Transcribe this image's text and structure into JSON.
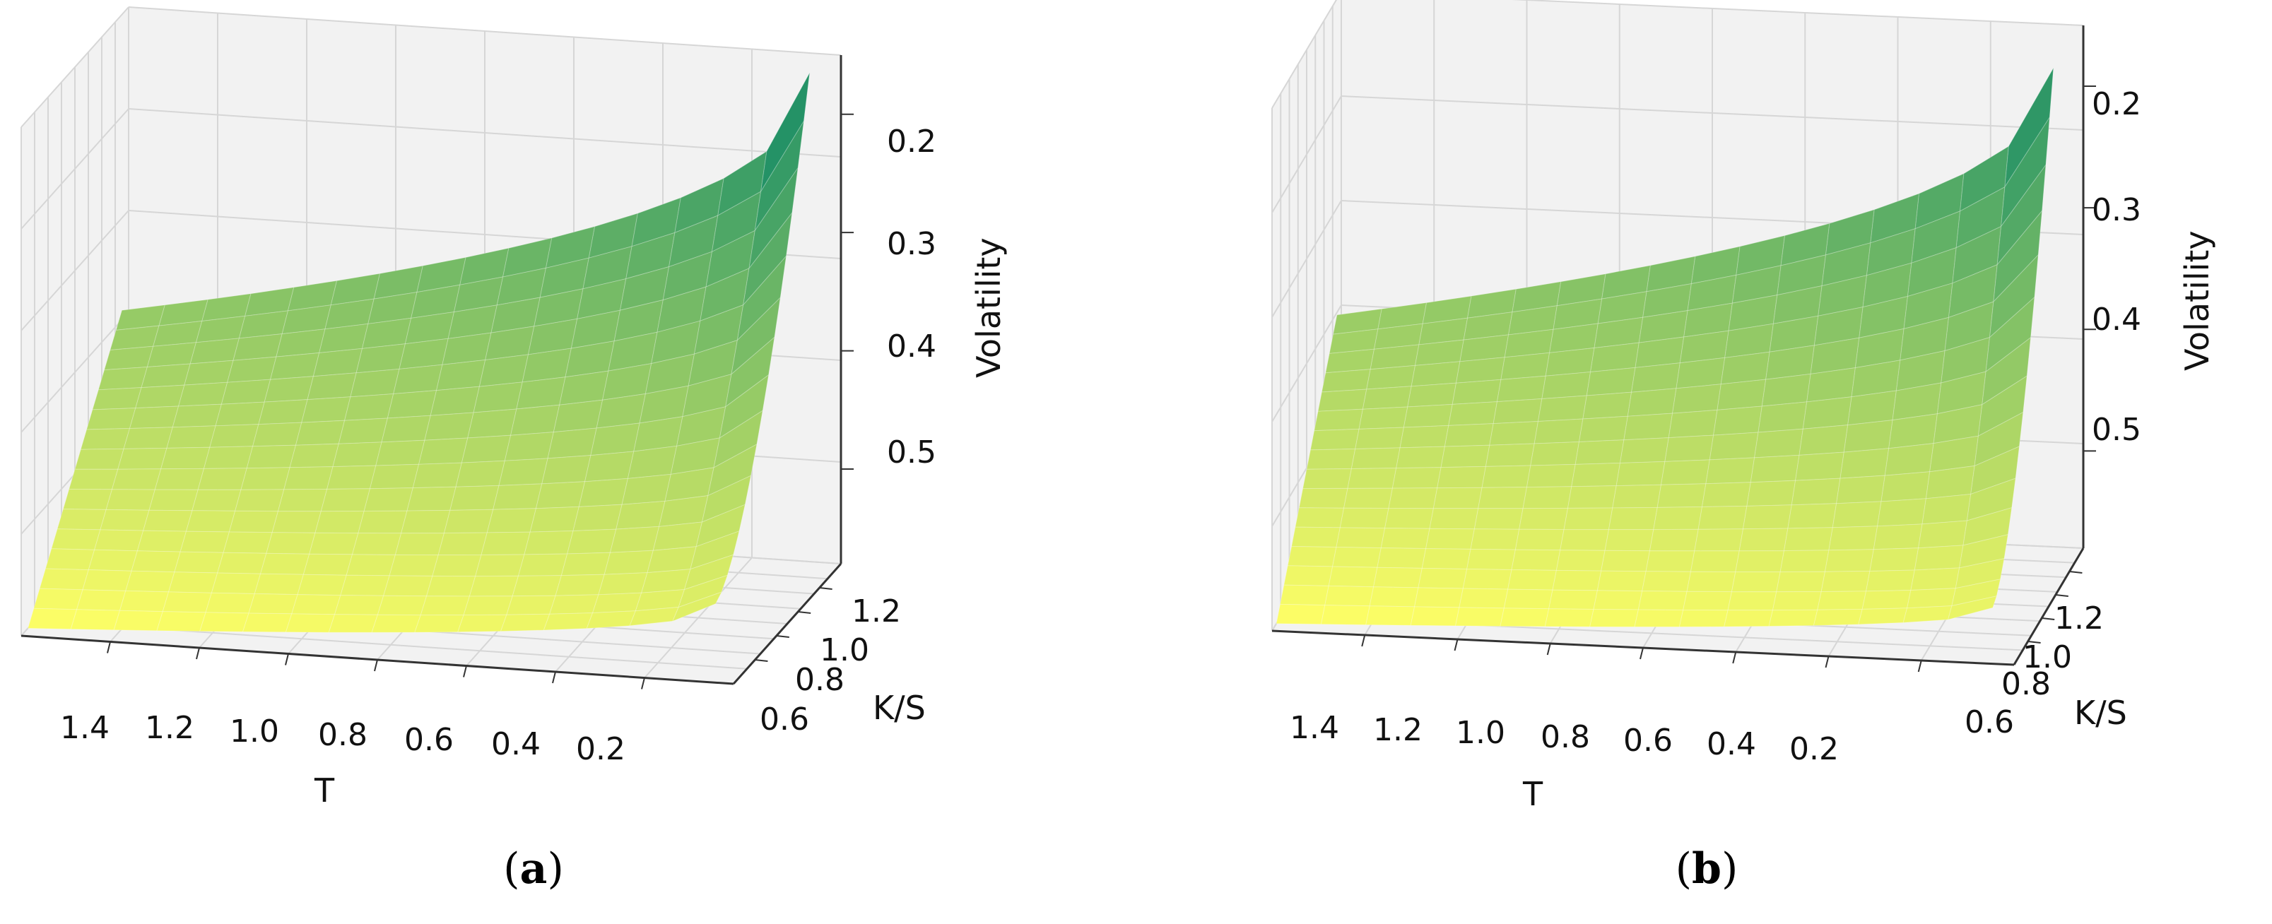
{
  "chart_data": [
    {
      "type": "surface3d",
      "caption": {
        "open": "(",
        "letter": "a",
        "close": ")"
      },
      "xlabel": "T",
      "ylabel": "K/S",
      "zlabel": "Volatility",
      "x_ticks": [
        "1.4",
        "1.2",
        "1.0",
        "0.8",
        "0.6",
        "0.4",
        "0.2"
      ],
      "y_ticks": [
        "0.6",
        "0.8",
        "1.0",
        "1.2"
      ],
      "z_ticks": [
        "0.2",
        "0.3",
        "0.4",
        "0.5"
      ],
      "xlim": [
        0.05,
        1.5
      ],
      "ylim": [
        0.55,
        1.35
      ],
      "zlim": [
        0.15,
        0.58
      ],
      "zaxis_inverted": true,
      "colormap": "summer",
      "colors": {
        "low": "#ffff66",
        "high": "#008066"
      },
      "grid": true,
      "surface": {
        "T": [
          1.5,
          1.3,
          1.1,
          0.9,
          0.7,
          0.5,
          0.3,
          0.1
        ],
        "KS": [
          0.6,
          0.7,
          0.8,
          0.9,
          1.0,
          1.1,
          1.2,
          1.3
        ],
        "volatility_corners": {
          "T_high_KS_low": 0.58,
          "T_high_KS_high": 0.4,
          "T_low_KS_low": 0.52,
          "T_low_KS_high": 0.16
        }
      }
    },
    {
      "type": "surface3d",
      "caption": {
        "open": "(",
        "letter": "b",
        "close": ")"
      },
      "xlabel": "T",
      "ylabel": "K/S",
      "zlabel": "Volatility",
      "x_ticks": [
        "1.4",
        "1.2",
        "1.0",
        "0.8",
        "0.6",
        "0.4",
        "0.2"
      ],
      "y_ticks": [
        "0.6",
        "0.8",
        "1.0",
        "1.2"
      ],
      "z_ticks": [
        "0.2",
        "0.3",
        "0.4",
        "0.5"
      ],
      "xlim": [
        0.05,
        1.5
      ],
      "ylim": [
        0.55,
        1.35
      ],
      "zlim": [
        0.15,
        0.58
      ],
      "zaxis_inverted": true,
      "colormap": "summer",
      "colors": {
        "low": "#ffff66",
        "high": "#008066"
      },
      "grid": true,
      "surface": {
        "T": [
          1.5,
          1.3,
          1.1,
          0.9,
          0.7,
          0.5,
          0.3,
          0.1
        ],
        "KS": [
          0.6,
          0.7,
          0.8,
          0.9,
          1.0,
          1.1,
          1.2,
          1.3
        ],
        "volatility_corners": {
          "T_high_KS_low": 0.58,
          "T_high_KS_high": 0.41,
          "T_low_KS_low": 0.54,
          "T_low_KS_high": 0.18
        }
      }
    }
  ]
}
